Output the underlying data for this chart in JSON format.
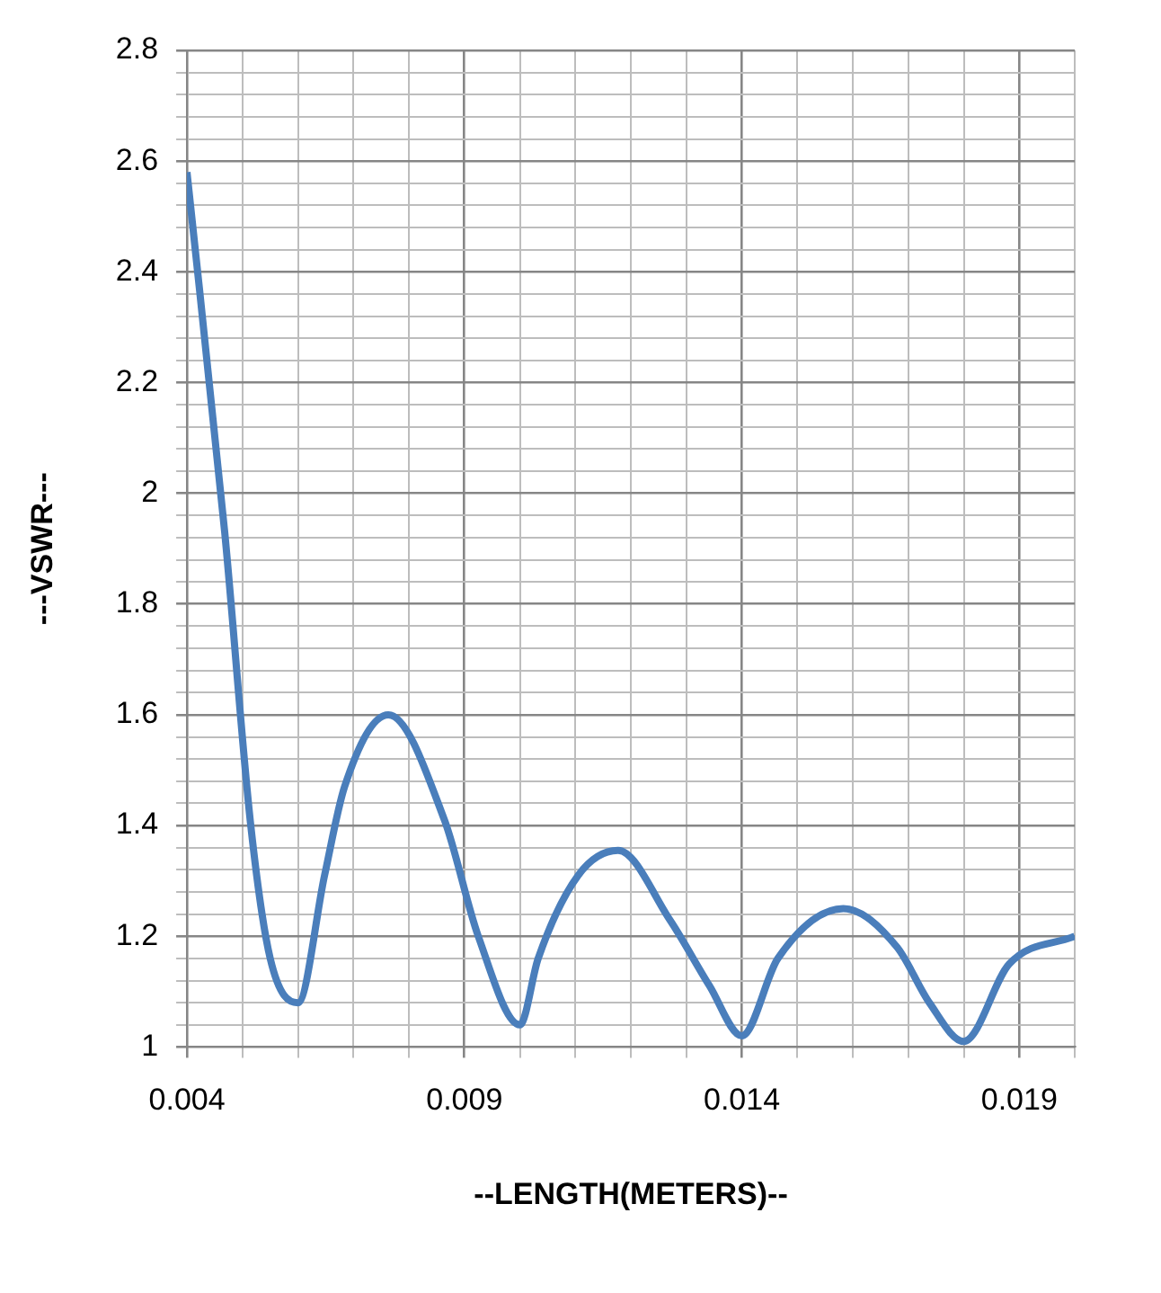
{
  "chart_data": {
    "type": "line",
    "xlabel": "--LENGTH(METERS)--",
    "ylabel": "---VSWR---",
    "x": [
      0.004,
      0.00468,
      0.00515,
      0.0055,
      0.006,
      0.00648,
      0.00684,
      0.00763,
      0.00864,
      0.00925,
      0.01,
      0.01033,
      0.01105,
      0.01177,
      0.0127,
      0.01342,
      0.014,
      0.01465,
      0.01583,
      0.0168,
      0.01738,
      0.018,
      0.01882,
      0.02
    ],
    "series": [
      {
        "color": "#4a7ebb",
        "values": [
          2.58,
          1.93,
          1.4,
          1.16,
          1.08,
          1.31,
          1.47,
          1.6,
          1.41,
          1.2,
          1.04,
          1.16,
          1.31,
          1.355,
          1.23,
          1.11,
          1.02,
          1.16,
          1.25,
          1.18,
          1.08,
          1.01,
          1.15,
          1.2
        ]
      }
    ],
    "xlim": [
      0.004,
      0.02
    ],
    "xticks": [
      0.004,
      {
        "value": 0.005,
        "label": null
      },
      {
        "value": 0.006,
        "label": null
      },
      {
        "value": 0.007,
        "label": null
      },
      {
        "value": 0.008,
        "label": null
      },
      0.009,
      {
        "value": 0.01,
        "label": null
      },
      {
        "value": 0.011,
        "label": null
      },
      {
        "value": 0.012,
        "label": null
      },
      {
        "value": 0.013,
        "label": null
      },
      0.014,
      {
        "value": 0.015,
        "label": null
      },
      {
        "value": 0.016,
        "label": null
      },
      {
        "value": 0.017,
        "label": null
      },
      {
        "value": 0.018,
        "label": null
      },
      0.019,
      {
        "value": 0.02,
        "label": null
      }
    ],
    "ylim": [
      1,
      2.8
    ],
    "yticks": [
      1,
      {
        "value": 1.04,
        "label": null
      },
      {
        "value": 1.08,
        "label": null
      },
      {
        "value": 1.12,
        "label": null
      },
      {
        "value": 1.16,
        "label": null
      },
      1.2,
      {
        "value": 1.24,
        "label": null
      },
      {
        "value": 1.28,
        "label": null
      },
      {
        "value": 1.32,
        "label": null
      },
      {
        "value": 1.36,
        "label": null
      },
      1.4,
      {
        "value": 1.44,
        "label": null
      },
      {
        "value": 1.48,
        "label": null
      },
      {
        "value": 1.52,
        "label": null
      },
      {
        "value": 1.56,
        "label": null
      },
      1.6,
      {
        "value": 1.64,
        "label": null
      },
      {
        "value": 1.68,
        "label": null
      },
      {
        "value": 1.72,
        "label": null
      },
      {
        "value": 1.76,
        "label": null
      },
      1.8,
      {
        "value": 1.84,
        "label": null
      },
      {
        "value": 1.88,
        "label": null
      },
      {
        "value": 1.92,
        "label": null
      },
      {
        "value": 1.96,
        "label": null
      },
      2,
      {
        "value": 2.04,
        "label": null
      },
      {
        "value": 2.08,
        "label": null
      },
      {
        "value": 2.12,
        "label": null
      },
      {
        "value": 2.16,
        "label": null
      },
      2.2,
      {
        "value": 2.24,
        "label": null
      },
      {
        "value": 2.28,
        "label": null
      },
      {
        "value": 2.32,
        "label": null
      },
      {
        "value": 2.36,
        "label": null
      },
      2.4,
      {
        "value": 2.44,
        "label": null
      },
      {
        "value": 2.48,
        "label": null
      },
      {
        "value": 2.52,
        "label": null
      },
      {
        "value": 2.56,
        "label": null
      },
      2.6,
      {
        "value": 2.64,
        "label": null
      },
      {
        "value": 2.68,
        "label": null
      },
      {
        "value": 2.72,
        "label": null
      },
      {
        "value": 2.76,
        "label": null
      },
      2.8
    ],
    "grid": true,
    "legend": false,
    "marker": "none",
    "line_style": "solid"
  }
}
